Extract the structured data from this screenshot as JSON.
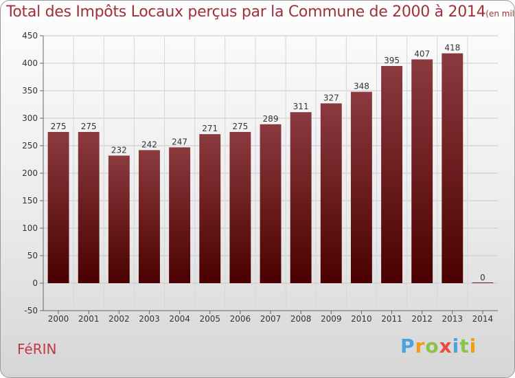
{
  "title": {
    "main": "Total des Impôts Locaux perçus par la Commune de 2000 à 2014",
    "unit": "(en milliers d'€)"
  },
  "commune": "FéRIN",
  "logo": {
    "letters": [
      {
        "char": "P",
        "color": "#4aa3df"
      },
      {
        "char": "r",
        "color": "#f39c12"
      },
      {
        "char": "o",
        "color": "#8bc34a"
      },
      {
        "char": "x",
        "color": "#e74c3c"
      },
      {
        "char": "i",
        "color": "#4aa3df"
      },
      {
        "char": "t",
        "color": "#8bc34a"
      },
      {
        "char": "i",
        "color": "#f39c12"
      }
    ]
  },
  "chart_data": {
    "type": "bar",
    "title": "Total des Impôts Locaux perçus par la Commune de 2000 à 2014",
    "ylabel": "en milliers d'€",
    "xlabel": "",
    "categories": [
      "2000",
      "2001",
      "2002",
      "2003",
      "2004",
      "2005",
      "2006",
      "2007",
      "2008",
      "2009",
      "2010",
      "2011",
      "2012",
      "2013",
      "2014"
    ],
    "values": [
      275,
      275,
      232,
      242,
      247,
      271,
      275,
      289,
      311,
      327,
      348,
      395,
      407,
      418,
      0
    ],
    "ylim": [
      -50,
      450
    ],
    "yticks": [
      -50,
      0,
      50,
      100,
      150,
      200,
      250,
      300,
      350,
      400,
      450
    ],
    "grid": true,
    "bar_color_top": "#8b3a3f",
    "bar_color_bottom": "#4a0000"
  }
}
